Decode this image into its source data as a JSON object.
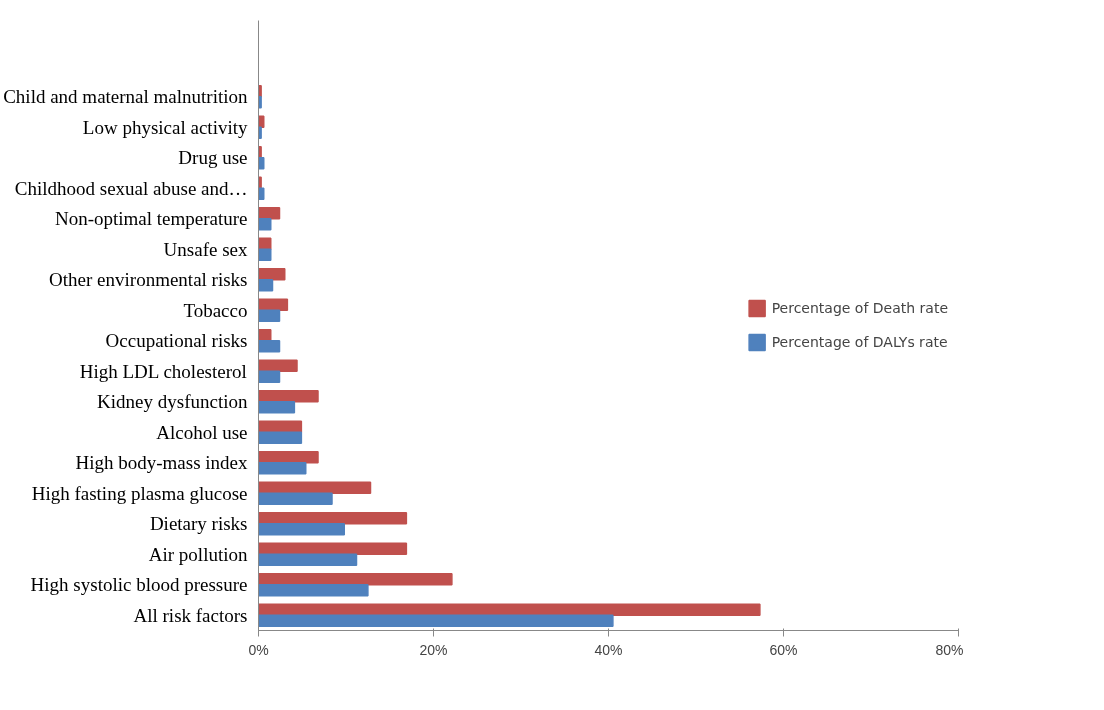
{
  "chart_data": {
    "type": "bar",
    "orientation": "horizontal",
    "categories": [
      null,
      null,
      "Child and maternal malnutrition",
      "Low physical activity",
      "Drug use",
      "Childhood sexual abuse and…",
      "Non-optimal temperature",
      "Unsafe sex",
      "Other environmental risks",
      "Tobacco",
      "Occupational risks",
      "High LDL cholesterol",
      "Kidney dysfunction",
      "Alcohol use",
      "High body-mass index",
      "High fasting plasma glucose",
      "Dietary risks",
      "Air pollution",
      "High systolic blood pressure",
      "All risk factors"
    ],
    "series": [
      {
        "name": "Percentage of Death rate",
        "color": "#c0504d",
        "values": [
          null,
          null,
          0.3,
          0.6,
          0.3,
          0.3,
          2.4,
          1.4,
          3.0,
          3.3,
          1.4,
          4.4,
          6.8,
          4.9,
          6.8,
          12.8,
          16.9,
          16.9,
          22.1,
          57.3
        ]
      },
      {
        "name": "Percentage of DALYs rate",
        "color": "#4f81bd",
        "values": [
          null,
          null,
          0.3,
          0.3,
          0.6,
          0.6,
          1.4,
          1.4,
          1.6,
          2.4,
          2.4,
          2.4,
          4.1,
          4.9,
          5.4,
          8.4,
          9.8,
          11.2,
          12.5,
          40.5
        ]
      }
    ],
    "xlim": [
      0,
      80
    ],
    "xticks": [
      {
        "value": 0,
        "label": "0%"
      },
      {
        "value": 20,
        "label": "20%"
      },
      {
        "value": 40,
        "label": "40%"
      },
      {
        "value": 60,
        "label": "60%"
      },
      {
        "value": 80,
        "label": "80%"
      }
    ],
    "grid": false,
    "legend": "right"
  }
}
